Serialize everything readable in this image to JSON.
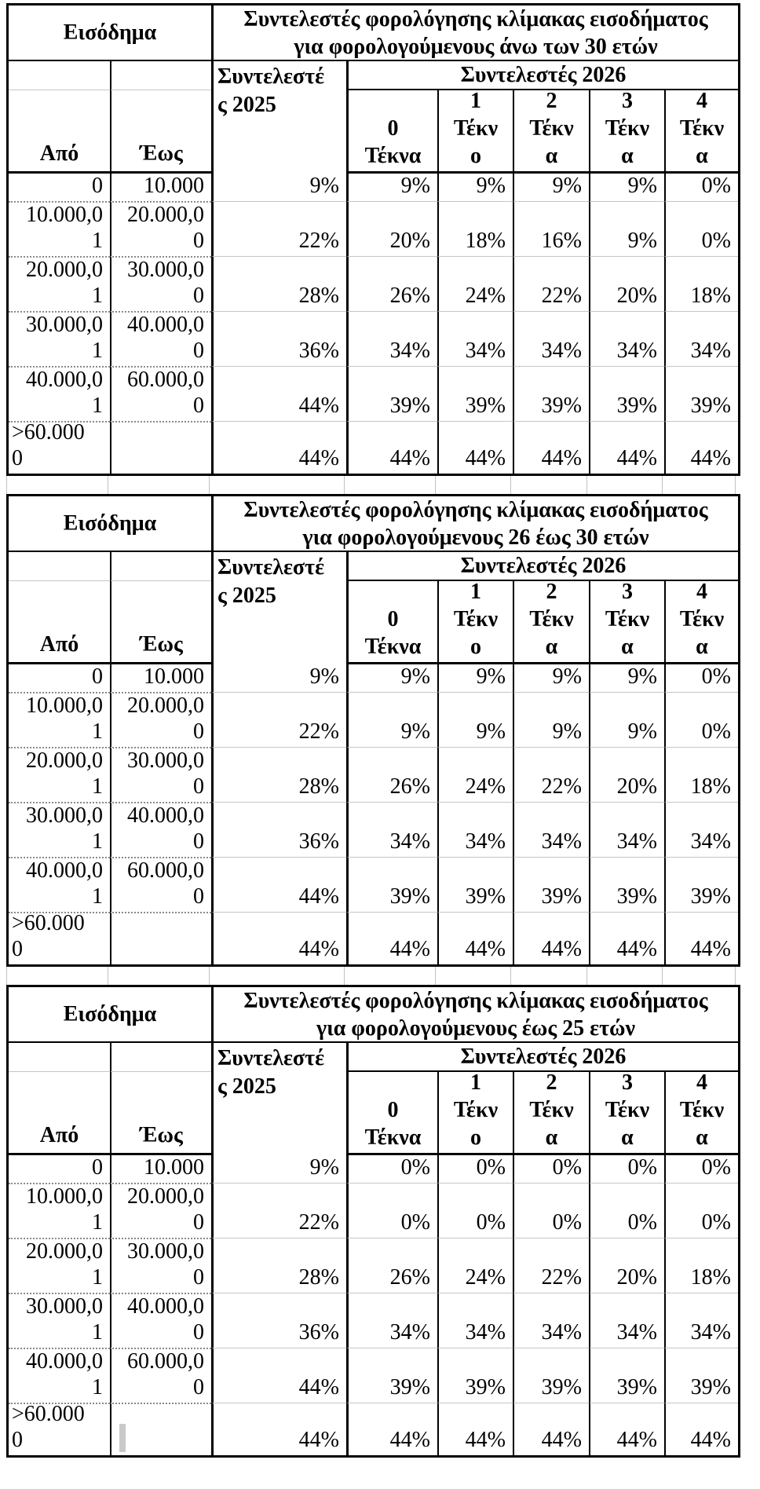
{
  "tables": [
    {
      "income_header": "Εισόδημα",
      "title": "Συντελεστές φορολόγησης κλίμακας εισοδήματος\nγια φορολογούμενους άνω των 30 ετών",
      "col_2025_header": "Συντελεστέ\nς 2025",
      "col_2026_header": "Συντελεστές 2026",
      "from_header": "Από",
      "to_header": "Έως",
      "children_headers": [
        "0\nΤέκνα",
        "1\nΤέκν\nο",
        "2\nΤέκν\nα",
        "3\nΤέκν\nα",
        "4\nΤέκν\nα"
      ],
      "rows": [
        {
          "from": "0",
          "to": "10.000",
          "r2025": "9%",
          "r2026": [
            "9%",
            "9%",
            "9%",
            "9%",
            "0%"
          ]
        },
        {
          "from": "10.000,0\n1",
          "to": "20.000,0\n0",
          "r2025": "22%",
          "r2026": [
            "20%",
            "18%",
            "16%",
            "9%",
            "0%"
          ]
        },
        {
          "from": "20.000,0\n1",
          "to": "30.000,0\n0",
          "r2025": "28%",
          "r2026": [
            "26%",
            "24%",
            "22%",
            "20%",
            "18%"
          ]
        },
        {
          "from": "30.000,0\n1",
          "to": "40.000,0\n0",
          "r2025": "36%",
          "r2026": [
            "34%",
            "34%",
            "34%",
            "34%",
            "34%"
          ]
        },
        {
          "from": "40.000,0\n1",
          "to": "60.000,0\n0",
          "r2025": "44%",
          "r2026": [
            "39%",
            "39%",
            "39%",
            "39%",
            "39%"
          ]
        },
        {
          "from": ">60.000\n0",
          "to": "",
          "r2025": "44%",
          "r2026": [
            "44%",
            "44%",
            "44%",
            "44%",
            "44%"
          ]
        }
      ]
    },
    {
      "income_header": "Εισόδημα",
      "title": "Συντελεστές φορολόγησης κλίμακας εισοδήματος\nγια φορολογούμενους 26 έως 30 ετών",
      "col_2025_header": "Συντελεστέ\nς 2025",
      "col_2026_header": "Συντελεστές 2026",
      "from_header": "Από",
      "to_header": "Έως",
      "children_headers": [
        "0\nΤέκνα",
        "1\nΤέκν\nο",
        "2\nΤέκν\nα",
        "3\nΤέκν\nα",
        "4\nΤέκν\nα"
      ],
      "rows": [
        {
          "from": "0",
          "to": "10.000",
          "r2025": "9%",
          "r2026": [
            "9%",
            "9%",
            "9%",
            "9%",
            "0%"
          ]
        },
        {
          "from": "10.000,0\n1",
          "to": "20.000,0\n0",
          "r2025": "22%",
          "r2026": [
            "9%",
            "9%",
            "9%",
            "9%",
            "0%"
          ]
        },
        {
          "from": "20.000,0\n1",
          "to": "30.000,0\n0",
          "r2025": "28%",
          "r2026": [
            "26%",
            "24%",
            "22%",
            "20%",
            "18%"
          ]
        },
        {
          "from": "30.000,0\n1",
          "to": "40.000,0\n0",
          "r2025": "36%",
          "r2026": [
            "34%",
            "34%",
            "34%",
            "34%",
            "34%"
          ]
        },
        {
          "from": "40.000,0\n1",
          "to": "60.000,0\n0",
          "r2025": "44%",
          "r2026": [
            "39%",
            "39%",
            "39%",
            "39%",
            "39%"
          ]
        },
        {
          "from": ">60.000\n0",
          "to": "",
          "r2025": "44%",
          "r2026": [
            "44%",
            "44%",
            "44%",
            "44%",
            "44%"
          ]
        }
      ]
    },
    {
      "income_header": "Εισόδημα",
      "title": "Συντελεστές φορολόγησης κλίμακας εισοδήματος\nγια φορολογούμενους έως 25 ετών",
      "col_2025_header": "Συντελεστέ\nς 2025",
      "col_2026_header": "Συντελεστές 2026",
      "from_header": "Από",
      "to_header": "Έως",
      "children_headers": [
        "0\nΤέκνα",
        "1\nΤέκν\nο",
        "2\nΤέκν\nα",
        "3\nΤέκν\nα",
        "4\nΤέκν\nα"
      ],
      "rows": [
        {
          "from": "0",
          "to": "10.000",
          "r2025": "9%",
          "r2026": [
            "0%",
            "0%",
            "0%",
            "0%",
            "0%"
          ]
        },
        {
          "from": "10.000,0\n1",
          "to": "20.000,0\n0",
          "r2025": "22%",
          "r2026": [
            "0%",
            "0%",
            "0%",
            "0%",
            "0%"
          ]
        },
        {
          "from": "20.000,0\n1",
          "to": "30.000,0\n0",
          "r2025": "28%",
          "r2026": [
            "26%",
            "24%",
            "22%",
            "20%",
            "18%"
          ]
        },
        {
          "from": "30.000,0\n1",
          "to": "40.000,0\n0",
          "r2025": "36%",
          "r2026": [
            "34%",
            "34%",
            "34%",
            "34%",
            "34%"
          ]
        },
        {
          "from": "40.000,0\n1",
          "to": "60.000,0\n0",
          "r2025": "44%",
          "r2026": [
            "39%",
            "39%",
            "39%",
            "39%",
            "39%"
          ]
        },
        {
          "from": ">60.000\n0",
          "to": "",
          "r2025": "44%",
          "r2026": [
            "44%",
            "44%",
            "44%",
            "44%",
            "44%"
          ]
        }
      ]
    }
  ],
  "colors": {
    "text": "#000000",
    "border_heavy": "#000000",
    "row_separator_gray": "#c6c6c6",
    "dotted_separator": "#8a8a8a",
    "cursor_artifact": "#c9c9c9",
    "background": "#ffffff"
  }
}
